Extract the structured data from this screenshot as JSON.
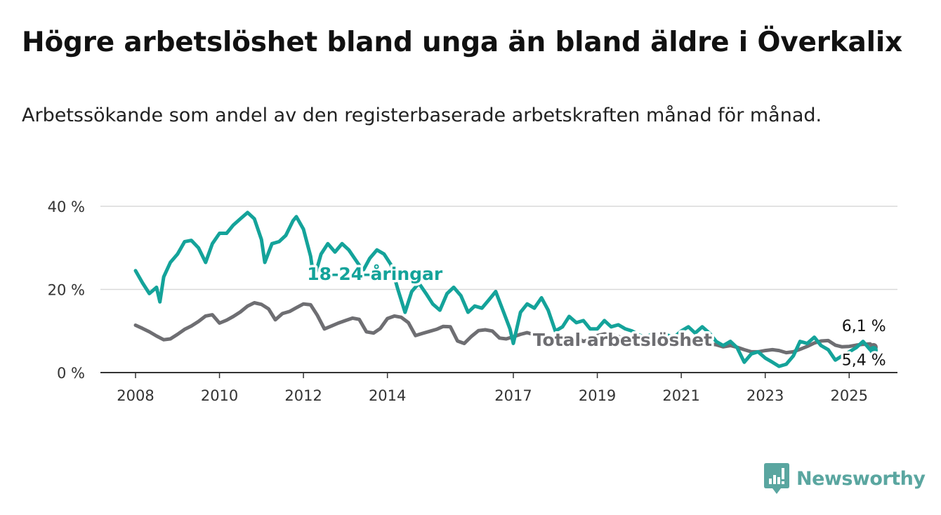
{
  "title": "Högre arbetslöshet bland unga än bland äldre i Överkalix",
  "subtitle": "Arbetssökande som andel av den registerbaserade arbetskraften månad för månad.",
  "brand": {
    "name": "Newsworthy",
    "icon": "bar-chart-logo-icon",
    "color": "#5aa6a0"
  },
  "chart_data": {
    "type": "line",
    "y_axis": {
      "min": 0,
      "max": 40,
      "ticks": [
        0,
        20,
        40
      ],
      "tick_labels": [
        "0 %",
        "20 %",
        "40 %"
      ],
      "unit": "%"
    },
    "x_axis": {
      "start": "2008-01",
      "end": "2026-02",
      "tick_labels": [
        "2008",
        "2010",
        "2012",
        "2014",
        "2017",
        "2019",
        "2021",
        "2023",
        "2025"
      ],
      "tick_values": [
        2008.0,
        2010.0,
        2012.0,
        2014.0,
        2017.0,
        2019.0,
        2021.0,
        2023.0,
        2025.0
      ]
    },
    "grid": true,
    "series": [
      {
        "name": "Total arbetslöshet",
        "color": "#6e6e72",
        "end_label": "6,1 %",
        "points": [
          [
            2008.0,
            11.4
          ],
          [
            2008.17,
            10.6
          ],
          [
            2008.33,
            9.8
          ],
          [
            2008.5,
            8.8
          ],
          [
            2008.67,
            7.9
          ],
          [
            2008.83,
            8.1
          ],
          [
            2009.0,
            9.2
          ],
          [
            2009.17,
            10.4
          ],
          [
            2009.33,
            11.2
          ],
          [
            2009.5,
            12.3
          ],
          [
            2009.67,
            13.6
          ],
          [
            2009.83,
            13.9
          ],
          [
            2010.0,
            11.9
          ],
          [
            2010.17,
            12.6
          ],
          [
            2010.33,
            13.5
          ],
          [
            2010.5,
            14.6
          ],
          [
            2010.67,
            16.0
          ],
          [
            2010.83,
            16.8
          ],
          [
            2011.0,
            16.4
          ],
          [
            2011.17,
            15.3
          ],
          [
            2011.33,
            12.7
          ],
          [
            2011.5,
            14.2
          ],
          [
            2011.67,
            14.7
          ],
          [
            2011.83,
            15.6
          ],
          [
            2012.0,
            16.5
          ],
          [
            2012.17,
            16.3
          ],
          [
            2012.33,
            13.8
          ],
          [
            2012.5,
            10.5
          ],
          [
            2012.67,
            11.2
          ],
          [
            2012.83,
            11.9
          ],
          [
            2013.0,
            12.5
          ],
          [
            2013.17,
            13.1
          ],
          [
            2013.33,
            12.8
          ],
          [
            2013.5,
            9.8
          ],
          [
            2013.67,
            9.5
          ],
          [
            2013.83,
            10.6
          ],
          [
            2014.0,
            13.0
          ],
          [
            2014.17,
            13.6
          ],
          [
            2014.33,
            13.3
          ],
          [
            2014.5,
            12.0
          ],
          [
            2014.67,
            8.9
          ],
          [
            2014.83,
            9.4
          ],
          [
            2015.0,
            9.9
          ],
          [
            2015.17,
            10.4
          ],
          [
            2015.33,
            11.1
          ],
          [
            2015.5,
            11.0
          ],
          [
            2015.67,
            7.6
          ],
          [
            2015.83,
            7.0
          ],
          [
            2016.0,
            8.7
          ],
          [
            2016.17,
            10.1
          ],
          [
            2016.33,
            10.3
          ],
          [
            2016.5,
            10.0
          ],
          [
            2016.67,
            8.3
          ],
          [
            2016.83,
            8.1
          ],
          [
            2017.0,
            8.6
          ],
          [
            2017.17,
            9.2
          ],
          [
            2017.33,
            9.6
          ],
          [
            2017.5,
            9.1
          ],
          [
            2017.67,
            7.1
          ],
          [
            2017.83,
            7.4
          ],
          [
            2018.0,
            8.2
          ],
          [
            2018.17,
            8.6
          ],
          [
            2018.33,
            8.7
          ],
          [
            2018.5,
            8.5
          ],
          [
            2018.67,
            7.5
          ],
          [
            2018.83,
            8.0
          ],
          [
            2019.0,
            8.9
          ],
          [
            2019.17,
            9.3
          ],
          [
            2019.33,
            9.1
          ],
          [
            2019.5,
            8.7
          ],
          [
            2019.67,
            7.6
          ],
          [
            2019.83,
            7.9
          ],
          [
            2020.0,
            8.4
          ],
          [
            2020.17,
            8.7
          ],
          [
            2020.33,
            8.9
          ],
          [
            2020.5,
            8.6
          ],
          [
            2020.67,
            7.4
          ],
          [
            2020.83,
            7.6
          ],
          [
            2021.0,
            8.1
          ],
          [
            2021.17,
            8.4
          ],
          [
            2021.33,
            8.2
          ],
          [
            2021.5,
            7.9
          ],
          [
            2021.67,
            6.9
          ],
          [
            2021.83,
            6.7
          ],
          [
            2022.0,
            6.2
          ],
          [
            2022.17,
            6.5
          ],
          [
            2022.33,
            6.1
          ],
          [
            2022.5,
            5.5
          ],
          [
            2022.67,
            5.0
          ],
          [
            2022.83,
            5.0
          ],
          [
            2023.0,
            5.3
          ],
          [
            2023.17,
            5.5
          ],
          [
            2023.33,
            5.3
          ],
          [
            2023.5,
            4.8
          ],
          [
            2023.67,
            5.0
          ],
          [
            2023.83,
            5.6
          ],
          [
            2024.0,
            6.3
          ],
          [
            2024.17,
            7.1
          ],
          [
            2024.33,
            7.6
          ],
          [
            2024.5,
            7.7
          ],
          [
            2024.67,
            6.6
          ],
          [
            2024.83,
            6.2
          ],
          [
            2025.0,
            6.3
          ],
          [
            2025.17,
            6.6
          ],
          [
            2025.33,
            6.8
          ],
          [
            2025.5,
            6.9
          ],
          [
            2025.58,
            6.1
          ]
        ]
      },
      {
        "name": "18-24-åringar",
        "color": "#14a39a",
        "end_label": "5,4 %",
        "points": [
          [
            2008.0,
            24.5
          ],
          [
            2008.17,
            21.5
          ],
          [
            2008.33,
            19.0
          ],
          [
            2008.5,
            20.5
          ],
          [
            2008.58,
            17.0
          ],
          [
            2008.67,
            23.0
          ],
          [
            2008.83,
            26.5
          ],
          [
            2009.0,
            28.5
          ],
          [
            2009.17,
            31.5
          ],
          [
            2009.33,
            31.8
          ],
          [
            2009.5,
            30.0
          ],
          [
            2009.67,
            26.5
          ],
          [
            2009.83,
            31.0
          ],
          [
            2010.0,
            33.5
          ],
          [
            2010.17,
            33.5
          ],
          [
            2010.33,
            35.5
          ],
          [
            2010.5,
            37.0
          ],
          [
            2010.67,
            38.5
          ],
          [
            2010.83,
            37.0
          ],
          [
            2011.0,
            32.0
          ],
          [
            2011.08,
            26.5
          ],
          [
            2011.25,
            31.0
          ],
          [
            2011.42,
            31.5
          ],
          [
            2011.58,
            33.0
          ],
          [
            2011.75,
            36.5
          ],
          [
            2011.83,
            37.5
          ],
          [
            2012.0,
            34.5
          ],
          [
            2012.17,
            28.0
          ],
          [
            2012.25,
            22.5
          ],
          [
            2012.42,
            28.5
          ],
          [
            2012.58,
            31.0
          ],
          [
            2012.75,
            29.0
          ],
          [
            2012.92,
            31.0
          ],
          [
            2013.08,
            29.5
          ],
          [
            2013.25,
            27.0
          ],
          [
            2013.42,
            24.5
          ],
          [
            2013.58,
            27.5
          ],
          [
            2013.75,
            29.5
          ],
          [
            2013.92,
            28.5
          ],
          [
            2014.08,
            26.0
          ],
          [
            2014.25,
            20.0
          ],
          [
            2014.42,
            14.5
          ],
          [
            2014.58,
            19.5
          ],
          [
            2014.75,
            21.5
          ],
          [
            2014.92,
            19.0
          ],
          [
            2015.08,
            16.5
          ],
          [
            2015.25,
            15.0
          ],
          [
            2015.42,
            19.0
          ],
          [
            2015.58,
            20.5
          ],
          [
            2015.75,
            18.5
          ],
          [
            2015.92,
            14.5
          ],
          [
            2016.08,
            16.0
          ],
          [
            2016.25,
            15.5
          ],
          [
            2016.42,
            17.5
          ],
          [
            2016.58,
            19.5
          ],
          [
            2016.75,
            15.0
          ],
          [
            2016.92,
            10.5
          ],
          [
            2017.0,
            7.0
          ],
          [
            2017.17,
            14.5
          ],
          [
            2017.33,
            16.5
          ],
          [
            2017.5,
            15.5
          ],
          [
            2017.67,
            18.0
          ],
          [
            2017.83,
            15.0
          ],
          [
            2018.0,
            10.0
          ],
          [
            2018.17,
            11.0
          ],
          [
            2018.33,
            13.5
          ],
          [
            2018.5,
            12.0
          ],
          [
            2018.67,
            12.5
          ],
          [
            2018.83,
            10.5
          ],
          [
            2019.0,
            10.5
          ],
          [
            2019.17,
            12.5
          ],
          [
            2019.33,
            11.0
          ],
          [
            2019.5,
            11.5
          ],
          [
            2019.67,
            10.5
          ],
          [
            2019.83,
            10.0
          ],
          [
            2020.0,
            9.0
          ],
          [
            2020.17,
            8.5
          ],
          [
            2020.33,
            9.5
          ],
          [
            2020.5,
            8.0
          ],
          [
            2020.67,
            9.0
          ],
          [
            2020.83,
            8.5
          ],
          [
            2021.0,
            10.0
          ],
          [
            2021.17,
            11.0
          ],
          [
            2021.33,
            9.5
          ],
          [
            2021.5,
            11.0
          ],
          [
            2021.67,
            9.5
          ],
          [
            2021.83,
            7.5
          ],
          [
            2022.0,
            6.5
          ],
          [
            2022.17,
            7.5
          ],
          [
            2022.33,
            6.0
          ],
          [
            2022.5,
            2.5
          ],
          [
            2022.67,
            4.5
          ],
          [
            2022.83,
            5.0
          ],
          [
            2023.0,
            3.5
          ],
          [
            2023.17,
            2.5
          ],
          [
            2023.33,
            1.5
          ],
          [
            2023.5,
            2.0
          ],
          [
            2023.67,
            4.0
          ],
          [
            2023.83,
            7.5
          ],
          [
            2024.0,
            7.0
          ],
          [
            2024.17,
            8.5
          ],
          [
            2024.33,
            6.5
          ],
          [
            2024.5,
            5.5
          ],
          [
            2024.67,
            3.0
          ],
          [
            2024.83,
            4.0
          ],
          [
            2025.0,
            5.0
          ],
          [
            2025.17,
            6.0
          ],
          [
            2025.33,
            7.5
          ],
          [
            2025.5,
            5.5
          ],
          [
            2025.58,
            5.4
          ]
        ]
      }
    ],
    "annotations": [
      {
        "text": "18-24-åringar",
        "series": "18-24-åringar",
        "x": 2013.7,
        "y": 22.3
      },
      {
        "text": "Total arbetslöshet",
        "series": "Total arbetslöshet",
        "x": 2019.6,
        "y": 6.4
      },
      {
        "text": "6,1 %",
        "series": "Total arbetslöshet",
        "x": 2025.35,
        "y": 10.0
      },
      {
        "text": "5,4 %",
        "series": "18-24-åringar",
        "x": 2025.35,
        "y": 1.8
      }
    ]
  }
}
